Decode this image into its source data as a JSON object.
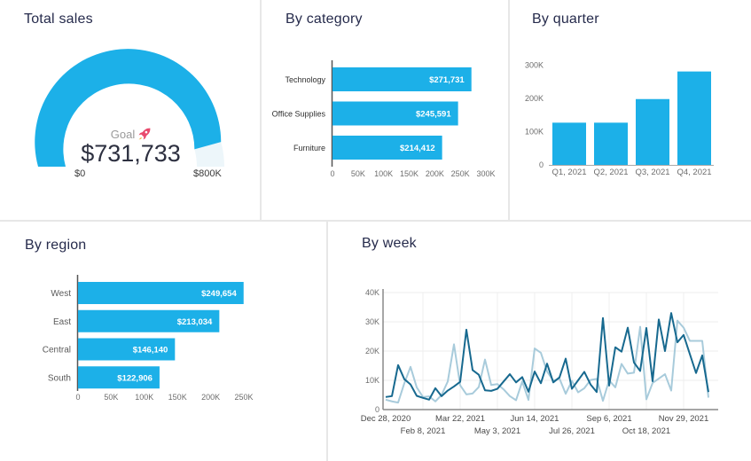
{
  "accent_color": "#1CB0E8",
  "chart_data": [
    {
      "type": "gauge",
      "title": "Total sales",
      "goal_label": "Goal",
      "goal_icon": "rocket",
      "value": 731733,
      "value_label": "$731,733",
      "min": 0,
      "max": 800000,
      "min_label": "$0",
      "max_label": "$800K",
      "color": "#1CB0E8",
      "track_color": "#EDF6FA"
    },
    {
      "type": "bar",
      "orientation": "horizontal",
      "title": "By category",
      "categories": [
        "Technology",
        "Office Supplies",
        "Furniture"
      ],
      "values": [
        271731,
        245591,
        214412
      ],
      "value_labels": [
        "$271,731",
        "$245,591",
        "$214,412"
      ],
      "xlabel": "",
      "ylabel": "",
      "xlim": [
        0,
        300000
      ],
      "xtick_values": [
        0,
        50000,
        100000,
        150000,
        200000,
        250000,
        300000
      ],
      "xtick_labels": [
        "0",
        "50K",
        "100K",
        "150K",
        "200K",
        "250K",
        "300K"
      ],
      "grid": false,
      "color": "#1CB0E8"
    },
    {
      "type": "bar",
      "orientation": "vertical",
      "title": "By quarter",
      "categories": [
        "Q1, 2021",
        "Q2, 2021",
        "Q3, 2021",
        "Q4, 2021"
      ],
      "values": [
        127000,
        127000,
        198000,
        281000
      ],
      "xlabel": "",
      "ylabel": "",
      "ylim": [
        0,
        300000
      ],
      "ytick_values": [
        0,
        100000,
        200000,
        300000
      ],
      "ytick_labels": [
        "0",
        "100K",
        "200K",
        "300K"
      ],
      "grid": false,
      "color": "#1CB0E8"
    },
    {
      "type": "bar",
      "orientation": "horizontal",
      "title": "By region",
      "categories": [
        "West",
        "East",
        "Central",
        "South"
      ],
      "values": [
        249654,
        213034,
        146140,
        122906
      ],
      "value_labels": [
        "$249,654",
        "$213,034",
        "$146,140",
        "$122,906"
      ],
      "xlabel": "",
      "ylabel": "",
      "xlim": [
        0,
        250000
      ],
      "xtick_values": [
        0,
        50000,
        100000,
        150000,
        200000,
        250000
      ],
      "xtick_labels": [
        "0",
        "50K",
        "100K",
        "150K",
        "200K",
        "250K"
      ],
      "grid": false,
      "color": "#1CB0E8"
    },
    {
      "type": "line",
      "title": "By week",
      "xlabel": "",
      "ylabel": "",
      "ylim": [
        0,
        40000
      ],
      "ytick_values": [
        0,
        10000,
        20000,
        30000,
        40000
      ],
      "ytick_labels": [
        "0",
        "10K",
        "20K",
        "30K",
        "40K"
      ],
      "xtick_row1": [
        "Dec 28, 2020",
        "Mar 22, 2021",
        "Jun 14, 2021",
        "Sep 6, 2021",
        "Nov 29, 2021"
      ],
      "xtick_row1_weeks": [
        0,
        12,
        24,
        36,
        48
      ],
      "xtick_row2": [
        "Feb 8, 2021",
        "May 3, 2021",
        "Jul 26, 2021",
        "Oct 18, 2021"
      ],
      "xtick_row2_weeks": [
        6,
        18,
        30,
        42
      ],
      "grid": true,
      "series": [
        {
          "name": "series-light-blue",
          "color": "#A8CBDB",
          "values": [
            3400,
            2800,
            2400,
            9000,
            14600,
            7600,
            4300,
            4500,
            2800,
            5000,
            9600,
            22300,
            8300,
            5200,
            5500,
            7700,
            17100,
            8400,
            8700,
            6900,
            4600,
            3200,
            9600,
            3300,
            20900,
            19400,
            13000,
            9900,
            10600,
            5400,
            9800,
            5900,
            7300,
            10100,
            10500,
            3000,
            10000,
            7600,
            15600,
            12300,
            12600,
            28300,
            3500,
            9100,
            10600,
            12100,
            6500,
            30400,
            28000,
            23500,
            23500,
            23500,
            4100
          ]
        },
        {
          "name": "series-dark-blue",
          "color": "#17698F",
          "values": [
            4300,
            4600,
            15200,
            10400,
            8600,
            4700,
            4000,
            3400,
            7300,
            4600,
            6500,
            7900,
            9500,
            27300,
            13500,
            11900,
            6600,
            6400,
            7100,
            9600,
            12100,
            9300,
            11100,
            6100,
            13000,
            9000,
            15700,
            9300,
            11000,
            17400,
            7100,
            10000,
            12900,
            8600,
            6000,
            31300,
            8200,
            21300,
            19800,
            28000,
            16100,
            13200,
            27900,
            9700,
            30800,
            20000,
            33000,
            23000,
            25500,
            19000,
            12500,
            18500,
            6000
          ]
        }
      ]
    }
  ]
}
